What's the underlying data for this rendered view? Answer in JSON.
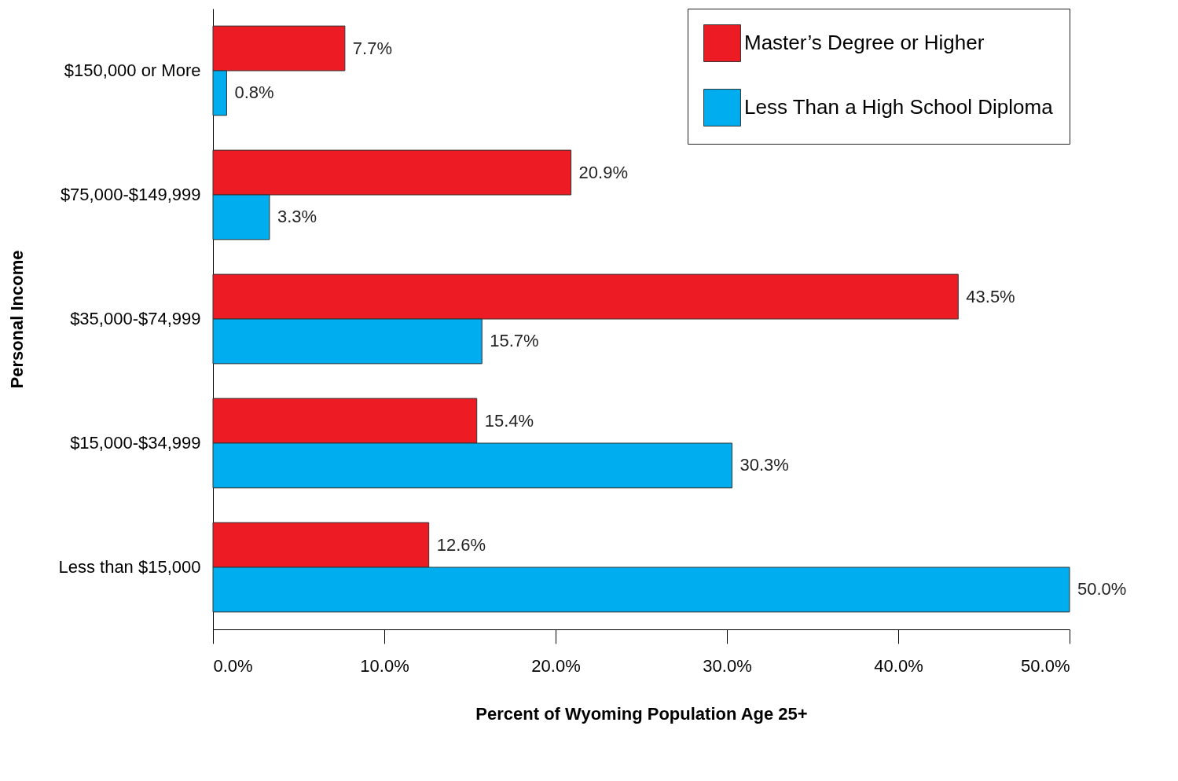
{
  "chart_data": {
    "type": "bar",
    "orientation": "horizontal",
    "xlabel": "Percent of Wyoming Population Age 25+",
    "ylabel": "Personal Income",
    "categories": [
      "$150,000 or More",
      "$75,000-$149,999",
      "$35,000-$74,999",
      "$15,000-$34,999",
      "Less than $15,000"
    ],
    "series": [
      {
        "name": "Master’s Degree or Higher",
        "color": "#ed1c24",
        "values": [
          7.7,
          20.9,
          43.5,
          15.4,
          12.6
        ],
        "value_labels": [
          "7.7%",
          "20.9%",
          "43.5%",
          "15.4%",
          "12.6%"
        ]
      },
      {
        "name": "Less Than a High School Diploma",
        "color": "#00aeef",
        "values": [
          0.8,
          3.3,
          15.7,
          30.3,
          50.0
        ],
        "value_labels": [
          "0.8%",
          "3.3%",
          "15.7%",
          "30.3%",
          "50.0%"
        ]
      }
    ],
    "xlim": [
      0,
      50
    ],
    "xticks": [
      {
        "value": 0,
        "label": "0.0%"
      },
      {
        "value": 10,
        "label": "10.0%"
      },
      {
        "value": 20,
        "label": "20.0%"
      },
      {
        "value": 30,
        "label": "30.0%"
      },
      {
        "value": 40,
        "label": "40.0%"
      },
      {
        "value": 50,
        "label": "50.0%"
      }
    ],
    "legend": "top right",
    "grid": false
  }
}
